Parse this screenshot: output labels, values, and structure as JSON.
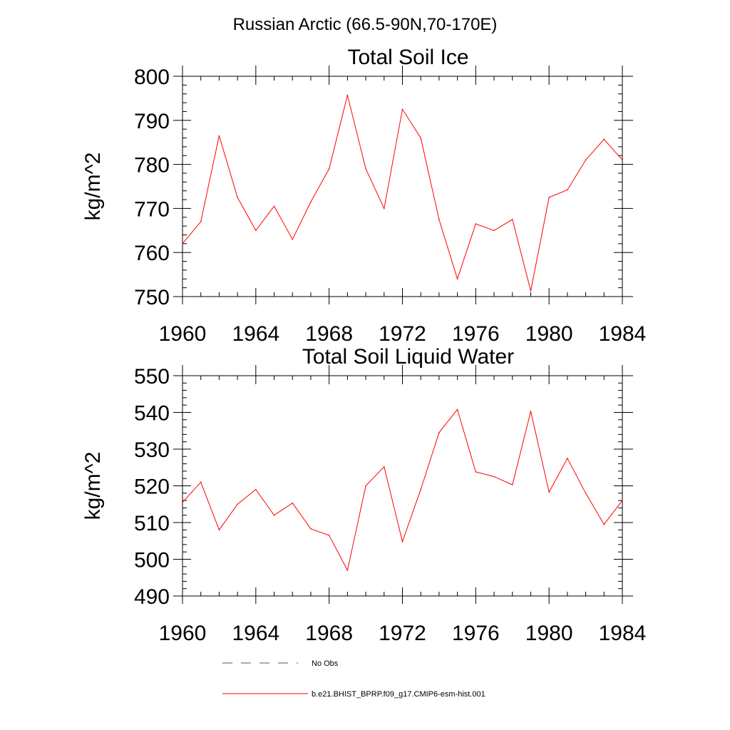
{
  "figure_title": "Russian Arctic (66.5-90N,70-170E)",
  "colors": {
    "model": "#ff0000",
    "obs": "#4a5a8a",
    "axes": "#000000"
  },
  "legend": {
    "obs_label": "No Obs",
    "model_label": "b.e21.BHIST_BPRP.f09_g17.CMIP6-esm-hist.001"
  },
  "chart_data": [
    {
      "type": "line",
      "title": "Total Soil Ice",
      "ylabel": "kg/m^2",
      "xlabel": "",
      "xlim": [
        1960,
        1984
      ],
      "ylim": [
        750,
        800
      ],
      "xticks": [
        1960,
        1964,
        1968,
        1972,
        1976,
        1980,
        1984
      ],
      "yticks": [
        750,
        760,
        770,
        780,
        790,
        800
      ],
      "grid": false,
      "series": [
        {
          "name": "b.e21.BHIST_BPRP.f09_g17.CMIP6-esm-hist.001",
          "color": "#ff0000",
          "x": [
            1960,
            1961,
            1962,
            1963,
            1964,
            1965,
            1966,
            1967,
            1968,
            1969,
            1970,
            1971,
            1972,
            1973,
            1974,
            1975,
            1976,
            1977,
            1978,
            1979,
            1980,
            1981,
            1982,
            1983,
            1984
          ],
          "y": [
            762.0,
            767.0,
            786.5,
            772.5,
            765.0,
            770.5,
            763.0,
            771.5,
            779.0,
            795.7,
            779.0,
            770.0,
            792.5,
            786.0,
            767.5,
            754.0,
            766.5,
            765.0,
            767.5,
            751.3,
            772.5,
            774.2,
            781.0,
            785.7,
            781.0
          ]
        }
      ]
    },
    {
      "type": "line",
      "title": "Total Soil Liquid Water",
      "ylabel": "kg/m^2",
      "xlabel": "",
      "xlim": [
        1960,
        1984
      ],
      "ylim": [
        490,
        550
      ],
      "xticks": [
        1960,
        1964,
        1968,
        1972,
        1976,
        1980,
        1984
      ],
      "yticks": [
        490,
        500,
        510,
        520,
        530,
        540,
        550
      ],
      "grid": false,
      "series": [
        {
          "name": "b.e21.BHIST_BPRP.f09_g17.CMIP6-esm-hist.001",
          "color": "#ff0000",
          "x": [
            1960,
            1961,
            1962,
            1963,
            1964,
            1965,
            1966,
            1967,
            1968,
            1969,
            1970,
            1971,
            1972,
            1973,
            1974,
            1975,
            1976,
            1977,
            1978,
            1979,
            1980,
            1981,
            1982,
            1983,
            1984
          ],
          "y": [
            515.5,
            521.0,
            508.0,
            515.0,
            519.0,
            512.0,
            515.3,
            508.3,
            506.5,
            497.0,
            520.0,
            525.2,
            504.8,
            519.0,
            534.5,
            540.8,
            523.8,
            522.5,
            520.3,
            540.3,
            518.3,
            527.5,
            518.0,
            509.5,
            516.0
          ]
        }
      ]
    }
  ]
}
